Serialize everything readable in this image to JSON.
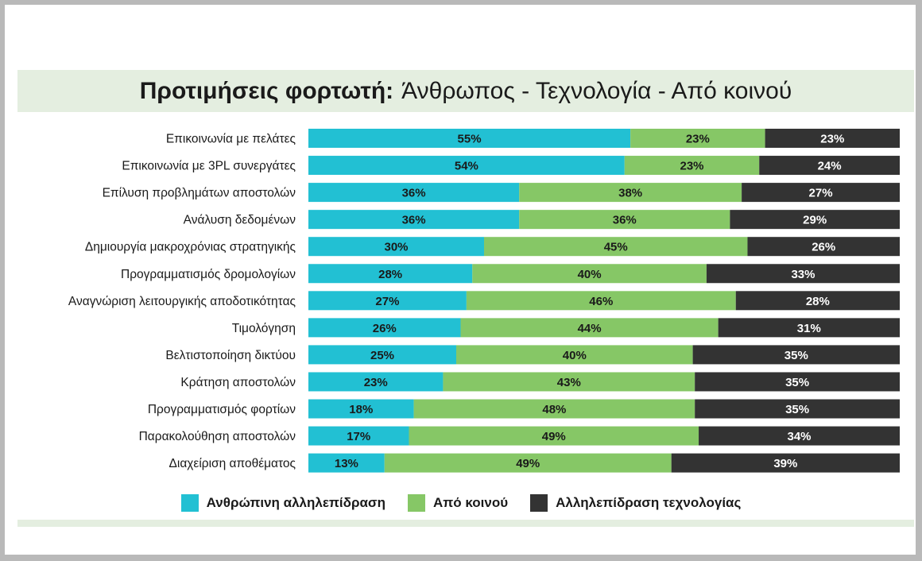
{
  "title": {
    "bold_part": "Προτιμήσεις φορτωτή:",
    "rest": "Άνθρωπος - Τεχνολογία - Από κοινού"
  },
  "colors": {
    "human": "#22c0d3",
    "joint": "#86c766",
    "tech": "#333333",
    "label_on_light": "#1a1a1a",
    "label_on_dark": "#ffffff"
  },
  "chart_data": {
    "type": "bar",
    "orientation": "horizontal",
    "stacked": true,
    "title": "Προτιμήσεις φορτωτή: Άνθρωπος - Τεχνολογία - Από κοινού",
    "value_suffix": "%",
    "legend_placement": "bottom",
    "grid": false,
    "categories": [
      "Επικοινωνία με πελάτες",
      "Επικοινωνία με 3PL συνεργάτες",
      "Επίλυση προβλημάτων αποστολών",
      "Ανάλυση δεδομένων",
      "Δημιουργία μακροχρόνιας στρατηγικής",
      "Προγραμματισμός δρομολογίων",
      "Αναγνώριση λειτουργικής αποδοτικότητας",
      "Τιμολόγηση",
      "Βελτιστοποίηση δικτύου",
      "Κράτηση αποστολών",
      "Προγραμματισμός φορτίων",
      "Παρακολούθηση αποστολών",
      "Διαχείριση αποθέματος"
    ],
    "series": [
      {
        "name": "Ανθρώπινη αλληλεπίδραση",
        "color": "#22c0d3",
        "values": [
          55,
          54,
          36,
          36,
          30,
          28,
          27,
          26,
          25,
          23,
          18,
          17,
          13
        ]
      },
      {
        "name": "Από κοινού",
        "color": "#86c766",
        "values": [
          23,
          23,
          38,
          36,
          45,
          40,
          46,
          44,
          40,
          43,
          48,
          49,
          49
        ]
      },
      {
        "name": "Αλληλεπίδραση τεχνολογίας",
        "color": "#333333",
        "values": [
          23,
          24,
          27,
          29,
          26,
          33,
          28,
          31,
          35,
          35,
          35,
          34,
          39
        ]
      }
    ]
  }
}
